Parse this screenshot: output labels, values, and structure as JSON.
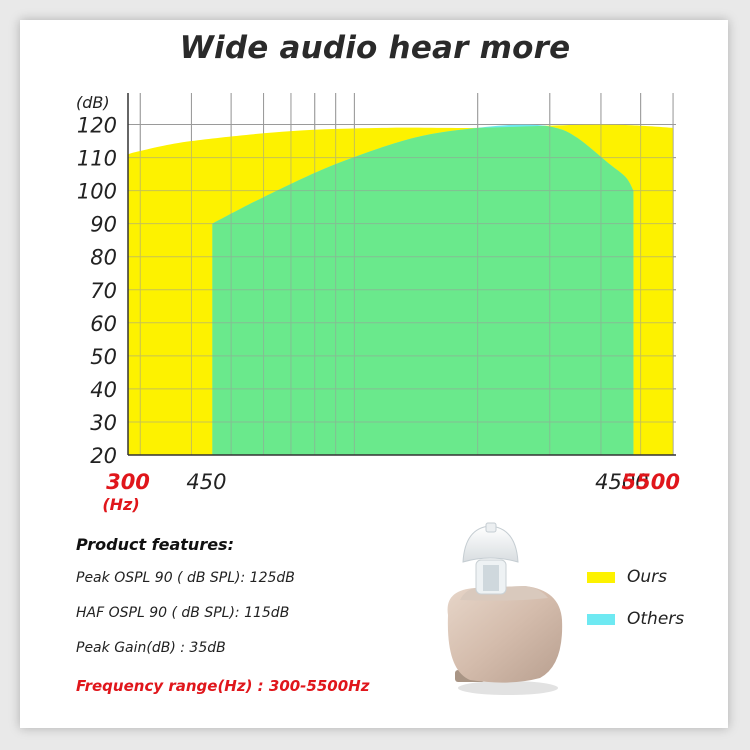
{
  "title": "Wide audio  hear more",
  "chart_data": {
    "type": "area",
    "ylabel": "(dB)",
    "y_ticks": [
      "120",
      "110",
      "100",
      "90",
      "80",
      "70",
      "60",
      "50",
      "40",
      "30",
      "20"
    ],
    "ylim": [
      20,
      125
    ],
    "x_scale": "log",
    "xlim": [
      280,
      6100
    ],
    "x_tick_labels": [
      {
        "label": "300",
        "value": 300,
        "highlight": true
      },
      {
        "label": "450",
        "value": 450,
        "highlight": false
      },
      {
        "label": "4500",
        "value": 4500,
        "highlight": false
      },
      {
        "label": "5500",
        "value": 5500,
        "highlight": true
      }
    ],
    "x_unit": "(Hz)",
    "grid": true,
    "series": [
      {
        "name": "Ours",
        "color": "#fdf200",
        "points": [
          [
            280,
            111
          ],
          [
            300,
            112
          ],
          [
            400,
            115
          ],
          [
            700,
            118
          ],
          [
            1200,
            119
          ],
          [
            2000,
            119
          ],
          [
            4000,
            120
          ],
          [
            6000,
            119
          ]
        ]
      },
      {
        "name": "Others",
        "color": "#6ee9f2",
        "points": [
          [
            450,
            90
          ],
          [
            600,
            98
          ],
          [
            900,
            108
          ],
          [
            1400,
            116
          ],
          [
            2000,
            119
          ],
          [
            2600,
            120
          ],
          [
            3100,
            119
          ],
          [
            3500,
            116
          ],
          [
            4200,
            108
          ],
          [
            4600,
            104
          ],
          [
            4800,
            100
          ]
        ]
      }
    ],
    "overlap_color": "#6ae98c"
  },
  "features": {
    "heading": "Product features:",
    "items": [
      "Peak OSPL 90 ( dB SPL): 125dB",
      "HAF  OSPL 90 ( dB SPL): 115dB",
      "Peak  Gain(dB) : 35dB"
    ],
    "highlight": "Frequency range(Hz) : 300-5500Hz"
  },
  "legend": [
    {
      "name": "Ours",
      "color": "#fdf200"
    },
    {
      "name": "Others",
      "color": "#6ee9f2"
    }
  ]
}
